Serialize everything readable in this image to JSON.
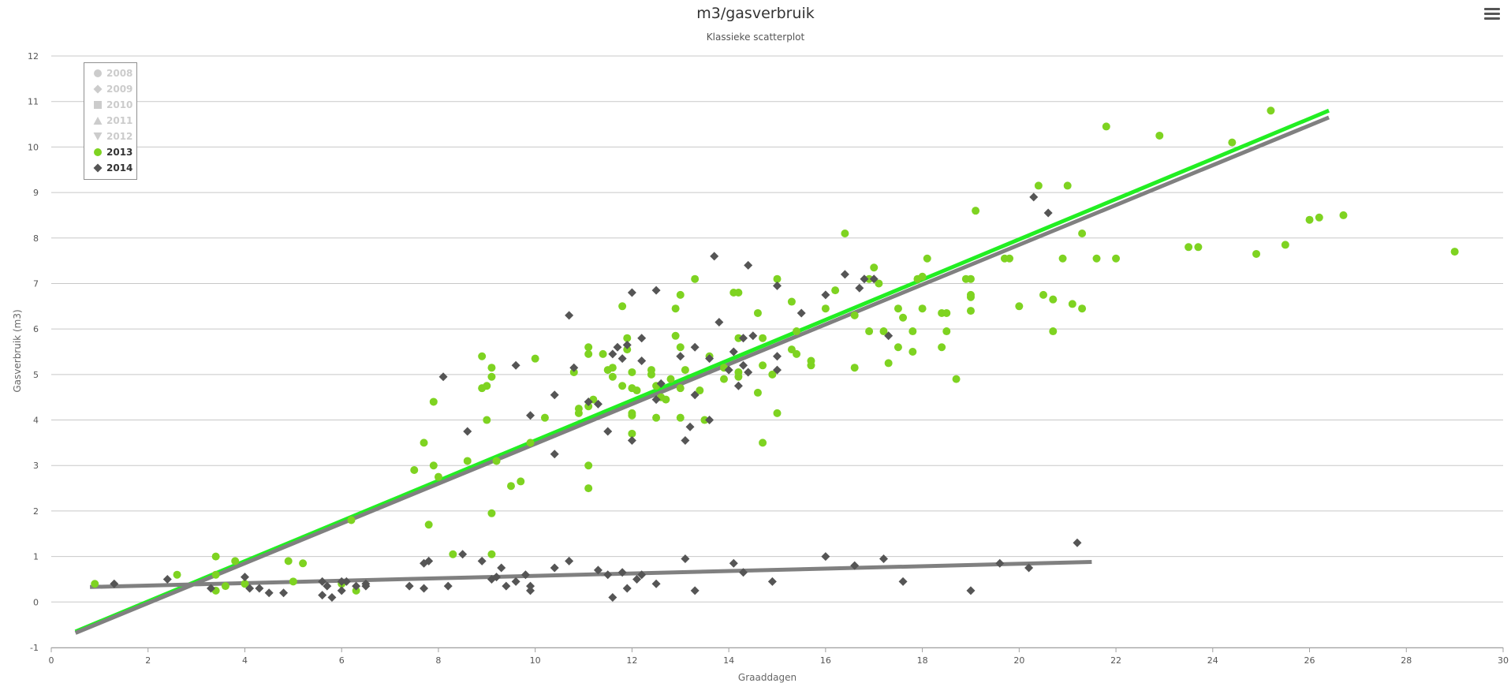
{
  "chart_data": {
    "type": "scatter",
    "title": "m3/gasverbruik",
    "subtitle": "Klassieke scatterplot",
    "xlabel": "Graaddagen",
    "ylabel": "Gasverbruik (m3)",
    "xlim": [
      0,
      30
    ],
    "ylim": [
      -1,
      12
    ],
    "xticks": [
      0,
      2,
      4,
      6,
      8,
      10,
      12,
      14,
      16,
      18,
      20,
      22,
      24,
      26,
      28,
      30
    ],
    "yticks": [
      -1,
      0,
      1,
      2,
      3,
      4,
      5,
      6,
      7,
      8,
      9,
      10,
      11,
      12
    ],
    "grid": "horizontal",
    "legend_position": "top-left",
    "legend": [
      {
        "name": "2008",
        "symbol": "circle",
        "visible": false
      },
      {
        "name": "2009",
        "symbol": "diamond",
        "visible": false
      },
      {
        "name": "2010",
        "symbol": "square",
        "visible": false
      },
      {
        "name": "2011",
        "symbol": "triangle",
        "visible": false
      },
      {
        "name": "2012",
        "symbol": "triangle-down",
        "visible": false
      },
      {
        "name": "2013",
        "symbol": "circle",
        "visible": true
      },
      {
        "name": "2014",
        "symbol": "diamond",
        "visible": true
      }
    ],
    "series": [
      {
        "name": "2013",
        "symbol": "circle",
        "color": "#7ed321",
        "points": [
          [
            0.9,
            0.4
          ],
          [
            2.6,
            0.6
          ],
          [
            3.4,
            1.0
          ],
          [
            3.4,
            0.6
          ],
          [
            3.4,
            0.25
          ],
          [
            3.6,
            0.35
          ],
          [
            3.8,
            0.9
          ],
          [
            4.0,
            0.4
          ],
          [
            4.9,
            0.9
          ],
          [
            5.0,
            0.45
          ],
          [
            5.2,
            0.85
          ],
          [
            6.0,
            0.4
          ],
          [
            6.3,
            0.25
          ],
          [
            6.2,
            1.8
          ],
          [
            7.5,
            2.9
          ],
          [
            7.7,
            3.5
          ],
          [
            7.8,
            1.7
          ],
          [
            7.9,
            4.4
          ],
          [
            7.9,
            3.0
          ],
          [
            8.0,
            2.75
          ],
          [
            8.3,
            1.05
          ],
          [
            8.6,
            3.1
          ],
          [
            8.9,
            5.4
          ],
          [
            8.9,
            4.7
          ],
          [
            9.0,
            4.75
          ],
          [
            9.0,
            4.0
          ],
          [
            9.1,
            1.95
          ],
          [
            9.1,
            1.05
          ],
          [
            9.1,
            5.15
          ],
          [
            9.1,
            4.95
          ],
          [
            9.2,
            3.1
          ],
          [
            9.5,
            2.55
          ],
          [
            9.7,
            2.65
          ],
          [
            9.9,
            3.5
          ],
          [
            10.0,
            5.35
          ],
          [
            10.2,
            4.05
          ],
          [
            10.8,
            5.05
          ],
          [
            10.9,
            4.25
          ],
          [
            10.9,
            4.15
          ],
          [
            11.1,
            5.6
          ],
          [
            11.1,
            5.45
          ],
          [
            11.1,
            4.3
          ],
          [
            11.1,
            3.0
          ],
          [
            11.1,
            2.5
          ],
          [
            11.2,
            4.45
          ],
          [
            11.4,
            5.45
          ],
          [
            11.5,
            5.1
          ],
          [
            11.6,
            5.15
          ],
          [
            11.6,
            4.95
          ],
          [
            11.8,
            6.5
          ],
          [
            11.8,
            4.75
          ],
          [
            11.9,
            5.8
          ],
          [
            11.9,
            5.55
          ],
          [
            12.0,
            5.05
          ],
          [
            12.0,
            4.7
          ],
          [
            12.0,
            4.15
          ],
          [
            12.0,
            4.1
          ],
          [
            12.0,
            3.7
          ],
          [
            12.1,
            4.65
          ],
          [
            12.4,
            5.1
          ],
          [
            12.4,
            5.0
          ],
          [
            12.5,
            4.75
          ],
          [
            12.5,
            4.05
          ],
          [
            12.6,
            4.5
          ],
          [
            12.7,
            4.45
          ],
          [
            12.8,
            4.9
          ],
          [
            12.9,
            5.85
          ],
          [
            12.9,
            6.45
          ],
          [
            13.0,
            6.75
          ],
          [
            13.0,
            5.6
          ],
          [
            13.0,
            4.7
          ],
          [
            13.0,
            4.05
          ],
          [
            13.1,
            5.1
          ],
          [
            13.3,
            7.1
          ],
          [
            13.4,
            4.65
          ],
          [
            13.5,
            4.0
          ],
          [
            13.6,
            5.4
          ],
          [
            13.9,
            5.15
          ],
          [
            13.9,
            4.9
          ],
          [
            14.1,
            6.8
          ],
          [
            14.2,
            6.8
          ],
          [
            14.2,
            5.8
          ],
          [
            14.2,
            5.05
          ],
          [
            14.2,
            4.95
          ],
          [
            14.6,
            6.35
          ],
          [
            14.6,
            4.6
          ],
          [
            14.7,
            5.8
          ],
          [
            14.7,
            5.2
          ],
          [
            14.7,
            3.5
          ],
          [
            14.9,
            5.0
          ],
          [
            15.0,
            4.15
          ],
          [
            15.0,
            7.1
          ],
          [
            15.3,
            6.6
          ],
          [
            15.3,
            5.55
          ],
          [
            15.4,
            5.45
          ],
          [
            15.4,
            5.95
          ],
          [
            15.7,
            5.3
          ],
          [
            15.7,
            5.2
          ],
          [
            16.0,
            6.45
          ],
          [
            16.2,
            6.85
          ],
          [
            16.4,
            8.1
          ],
          [
            16.6,
            6.3
          ],
          [
            16.6,
            5.15
          ],
          [
            16.9,
            7.1
          ],
          [
            16.9,
            5.95
          ],
          [
            17.0,
            7.35
          ],
          [
            17.1,
            7.0
          ],
          [
            17.2,
            5.95
          ],
          [
            17.3,
            5.25
          ],
          [
            17.5,
            6.45
          ],
          [
            17.5,
            5.6
          ],
          [
            17.6,
            6.25
          ],
          [
            17.8,
            5.95
          ],
          [
            17.8,
            5.5
          ],
          [
            17.9,
            7.1
          ],
          [
            18.0,
            7.15
          ],
          [
            18.0,
            6.45
          ],
          [
            18.1,
            7.55
          ],
          [
            18.4,
            6.35
          ],
          [
            18.4,
            5.6
          ],
          [
            18.5,
            6.35
          ],
          [
            18.5,
            5.95
          ],
          [
            18.7,
            4.9
          ],
          [
            18.9,
            7.1
          ],
          [
            19.0,
            7.1
          ],
          [
            19.0,
            6.75
          ],
          [
            19.0,
            6.4
          ],
          [
            19.0,
            6.7
          ],
          [
            19.1,
            8.6
          ],
          [
            19.7,
            7.55
          ],
          [
            19.8,
            7.55
          ],
          [
            20.0,
            6.5
          ],
          [
            20.4,
            9.15
          ],
          [
            20.5,
            6.75
          ],
          [
            20.7,
            6.65
          ],
          [
            20.7,
            5.95
          ],
          [
            20.9,
            7.55
          ],
          [
            21.0,
            9.15
          ],
          [
            21.1,
            6.55
          ],
          [
            21.3,
            6.45
          ],
          [
            21.3,
            8.1
          ],
          [
            21.6,
            7.55
          ],
          [
            21.8,
            10.45
          ],
          [
            22.0,
            7.55
          ],
          [
            22.9,
            10.25
          ],
          [
            23.5,
            7.8
          ],
          [
            23.7,
            7.8
          ],
          [
            24.4,
            10.1
          ],
          [
            24.9,
            7.65
          ],
          [
            25.2,
            10.8
          ],
          [
            25.5,
            7.85
          ],
          [
            26.0,
            8.4
          ],
          [
            26.2,
            8.45
          ],
          [
            26.7,
            8.5
          ],
          [
            29.0,
            7.7
          ]
        ]
      },
      {
        "name": "2014",
        "symbol": "diamond",
        "color": "#555555",
        "points": [
          [
            1.3,
            0.4
          ],
          [
            2.4,
            0.5
          ],
          [
            3.3,
            0.3
          ],
          [
            4.0,
            0.55
          ],
          [
            4.1,
            0.3
          ],
          [
            4.3,
            0.3
          ],
          [
            4.5,
            0.2
          ],
          [
            4.8,
            0.2
          ],
          [
            5.6,
            0.45
          ],
          [
            5.6,
            0.15
          ],
          [
            5.7,
            0.35
          ],
          [
            5.8,
            0.1
          ],
          [
            6.0,
            0.25
          ],
          [
            6.0,
            0.45
          ],
          [
            6.1,
            0.45
          ],
          [
            6.3,
            0.35
          ],
          [
            6.5,
            0.35
          ],
          [
            6.5,
            0.4
          ],
          [
            7.4,
            0.35
          ],
          [
            7.7,
            0.3
          ],
          [
            7.7,
            0.85
          ],
          [
            7.8,
            0.9
          ],
          [
            8.1,
            4.95
          ],
          [
            8.2,
            0.35
          ],
          [
            8.5,
            1.05
          ],
          [
            8.6,
            3.75
          ],
          [
            8.9,
            0.9
          ],
          [
            9.1,
            0.5
          ],
          [
            9.2,
            0.55
          ],
          [
            9.3,
            0.75
          ],
          [
            9.4,
            0.35
          ],
          [
            9.6,
            5.2
          ],
          [
            9.6,
            0.45
          ],
          [
            9.8,
            0.6
          ],
          [
            9.9,
            4.1
          ],
          [
            9.9,
            0.35
          ],
          [
            9.9,
            0.25
          ],
          [
            10.4,
            0.75
          ],
          [
            10.4,
            4.55
          ],
          [
            10.4,
            3.25
          ],
          [
            10.7,
            0.9
          ],
          [
            10.7,
            6.3
          ],
          [
            10.8,
            5.15
          ],
          [
            11.1,
            4.4
          ],
          [
            11.3,
            4.35
          ],
          [
            11.3,
            0.7
          ],
          [
            11.5,
            0.6
          ],
          [
            11.5,
            3.75
          ],
          [
            11.6,
            0.1
          ],
          [
            11.6,
            5.45
          ],
          [
            11.7,
            5.6
          ],
          [
            11.8,
            5.35
          ],
          [
            11.8,
            0.65
          ],
          [
            11.9,
            0.3
          ],
          [
            11.9,
            5.65
          ],
          [
            12.0,
            6.8
          ],
          [
            12.0,
            3.55
          ],
          [
            12.1,
            0.5
          ],
          [
            12.2,
            5.8
          ],
          [
            12.2,
            5.3
          ],
          [
            12.2,
            0.6
          ],
          [
            12.5,
            4.45
          ],
          [
            12.5,
            6.85
          ],
          [
            12.5,
            0.4
          ],
          [
            12.6,
            4.8
          ],
          [
            13.0,
            5.4
          ],
          [
            13.1,
            0.95
          ],
          [
            13.1,
            3.55
          ],
          [
            13.2,
            3.85
          ],
          [
            13.3,
            0.25
          ],
          [
            13.3,
            4.55
          ],
          [
            13.3,
            5.6
          ],
          [
            13.6,
            5.35
          ],
          [
            13.6,
            4.0
          ],
          [
            13.7,
            7.6
          ],
          [
            13.8,
            6.15
          ],
          [
            14.0,
            5.1
          ],
          [
            14.1,
            0.85
          ],
          [
            14.1,
            5.5
          ],
          [
            14.2,
            4.75
          ],
          [
            14.3,
            5.2
          ],
          [
            14.3,
            0.65
          ],
          [
            14.3,
            5.8
          ],
          [
            14.4,
            7.4
          ],
          [
            14.4,
            5.05
          ],
          [
            14.5,
            5.85
          ],
          [
            14.9,
            0.45
          ],
          [
            15.0,
            5.1
          ],
          [
            15.0,
            5.4
          ],
          [
            15.0,
            6.95
          ],
          [
            15.5,
            6.35
          ],
          [
            16.0,
            6.75
          ],
          [
            16.0,
            1.0
          ],
          [
            16.4,
            7.2
          ],
          [
            16.6,
            0.8
          ],
          [
            16.7,
            6.9
          ],
          [
            16.8,
            7.1
          ],
          [
            17.0,
            7.1
          ],
          [
            17.2,
            0.95
          ],
          [
            17.3,
            5.85
          ],
          [
            17.6,
            0.45
          ],
          [
            19.0,
            0.25
          ],
          [
            19.6,
            0.85
          ],
          [
            20.2,
            0.75
          ],
          [
            20.3,
            8.9
          ],
          [
            20.6,
            8.55
          ],
          [
            21.2,
            1.3
          ]
        ]
      }
    ],
    "trendlines": [
      {
        "series": "2013",
        "color": "#22ee22",
        "x": [
          0.5,
          26.4
        ],
        "y": [
          -0.65,
          10.8
        ]
      },
      {
        "series": "2014",
        "color": "#808080",
        "x": [
          0.5,
          26.4
        ],
        "y": [
          -0.68,
          10.65
        ]
      },
      {
        "series": "2014",
        "color": "#808080",
        "x": [
          0.8,
          21.5
        ],
        "y": [
          0.33,
          0.88
        ]
      }
    ]
  }
}
